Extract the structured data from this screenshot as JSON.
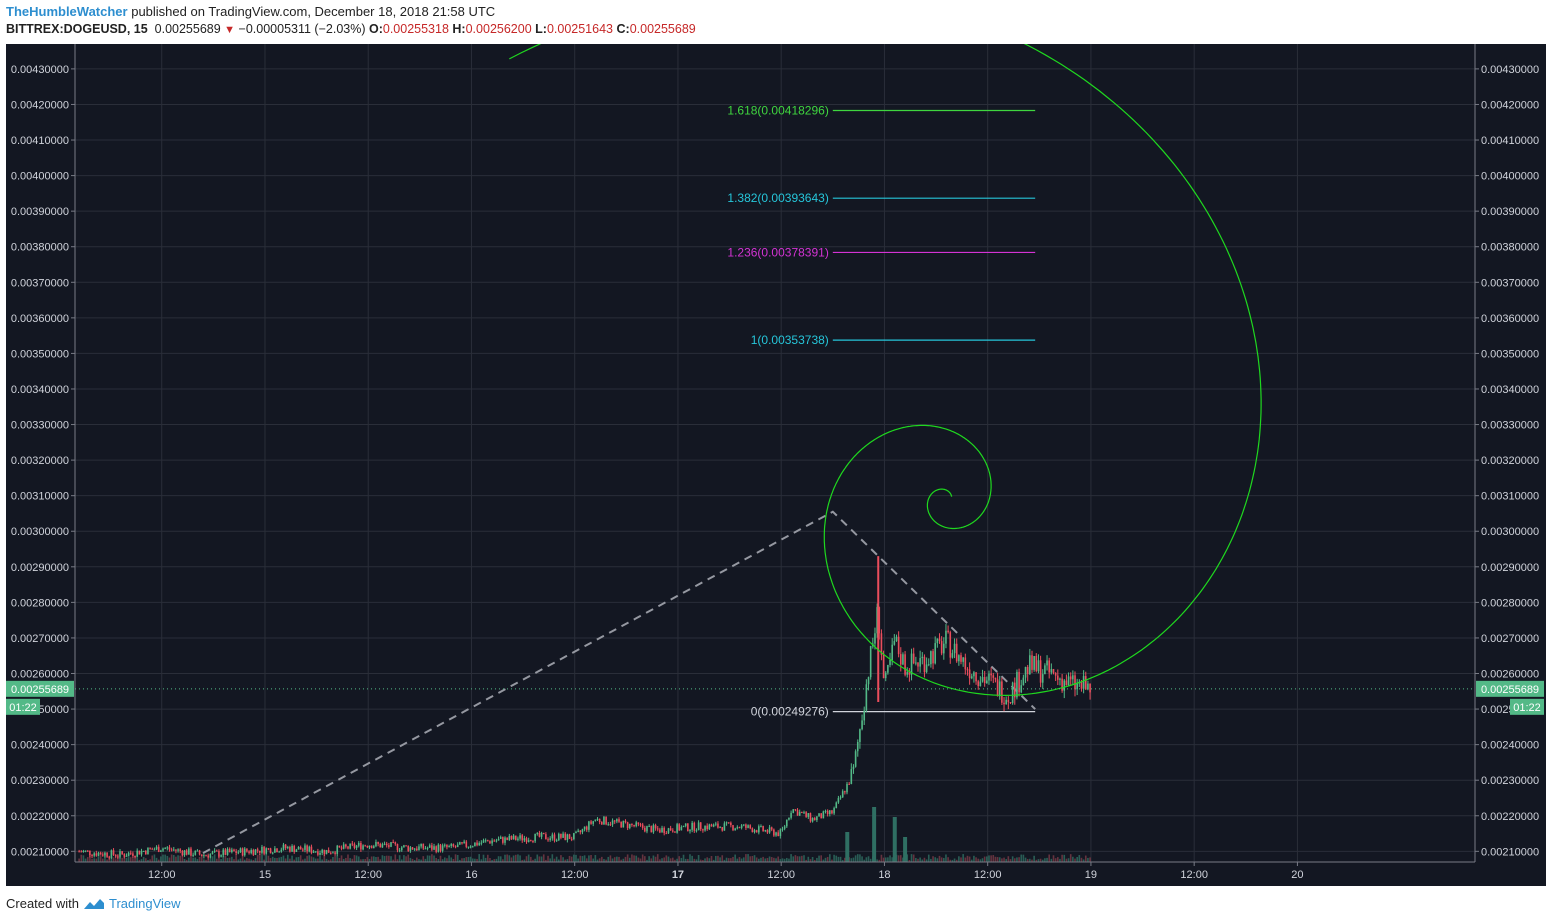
{
  "header": {
    "author": "TheHumbleWatcher",
    "published_text": "published on TradingView.com, December 18, 2018 21:58 UTC",
    "symbol": "BITTREX:DOGEUSD, 15",
    "last": "0.00255689",
    "change": "−0.00005311 (−2.03%)",
    "o_label": "O:",
    "o": "0.00255318",
    "h_label": "H:",
    "h": "0.00256200",
    "l_label": "L:",
    "l": "0.00251643",
    "c_label": "C:",
    "c": "0.00255689"
  },
  "footer": {
    "created_with": "Created with",
    "brand": "TradingView"
  },
  "colors": {
    "background": "#131722",
    "grid": "#2a2e39",
    "up": "#53b987",
    "down": "#eb4d5c",
    "spiral": "#1fd81f",
    "fib_1618": "#3fd63f",
    "fib_1382": "#26c6da",
    "fib_1236": "#d433d4",
    "fib_1": "#26c6da",
    "fib_0": "#d1d4dc",
    "price_line": "#53b987"
  },
  "chart_data": {
    "type": "candlestick",
    "y_ticks": [
      "0.00210000",
      "0.00220000",
      "0.00230000",
      "0.00240000",
      "0.00250000",
      "0.00260000",
      "0.00270000",
      "0.00280000",
      "0.00290000",
      "0.00300000",
      "0.00310000",
      "0.00320000",
      "0.00330000",
      "0.00340000",
      "0.00350000",
      "0.00360000",
      "0.00370000",
      "0.00380000",
      "0.00390000",
      "0.00400000",
      "0.00410000",
      "0.00420000",
      "0.00430000"
    ],
    "y_tick_values": [
      0.0021,
      0.0022,
      0.0023,
      0.0024,
      0.0025,
      0.0026,
      0.0027,
      0.0028,
      0.0029,
      0.003,
      0.0031,
      0.0032,
      0.0033,
      0.0034,
      0.0035,
      0.0036,
      0.0037,
      0.0038,
      0.0039,
      0.004,
      0.0041,
      0.0042,
      0.0043
    ],
    "ylim": [
      0.00207,
      0.00437
    ],
    "x_start_day": 14.08,
    "x_end_day": 20.86,
    "x_ticks": [
      {
        "label": "12:00",
        "day": 14.5,
        "bold": false
      },
      {
        "label": "15",
        "day": 15,
        "bold": false
      },
      {
        "label": "12:00",
        "day": 15.5,
        "bold": false
      },
      {
        "label": "16",
        "day": 16,
        "bold": false
      },
      {
        "label": "12:00",
        "day": 16.5,
        "bold": false
      },
      {
        "label": "17",
        "day": 17,
        "bold": true
      },
      {
        "label": "12:00",
        "day": 17.5,
        "bold": false
      },
      {
        "label": "18",
        "day": 18,
        "bold": false
      },
      {
        "label": "12:00",
        "day": 18.5,
        "bold": false
      },
      {
        "label": "19",
        "day": 19,
        "bold": false
      },
      {
        "label": "12:00",
        "day": 19.5,
        "bold": false
      },
      {
        "label": "20",
        "day": 20,
        "bold": false
      }
    ],
    "last_price": 0.00255689,
    "last_price_label": "0.00255689",
    "countdown": "01:22",
    "fib_levels": [
      {
        "label": "1.618(0.00418296)",
        "value": 0.00418296,
        "color": "#3fd63f"
      },
      {
        "label": "1.382(0.00393643)",
        "value": 0.00393643,
        "color": "#26c6da"
      },
      {
        "label": "1.236(0.00378391)",
        "value": 0.00378391,
        "color": "#d433d4"
      },
      {
        "label": "1(0.00353738)",
        "value": 0.00353738,
        "color": "#26c6da"
      },
      {
        "label": "0(0.00249276)",
        "value": 0.00249276,
        "color": "#d1d4dc"
      }
    ],
    "fib_x_range_day": [
      17.75,
      18.73
    ],
    "pattern_line": [
      {
        "day": 14.7,
        "price": 0.002095
      },
      {
        "day": 17.75,
        "price": 0.003055
      },
      {
        "day": 18.73,
        "price": 0.0025
      }
    ],
    "price_anchors": [
      [
        14.1,
        0.0021
      ],
      [
        14.3,
        0.00209
      ],
      [
        14.5,
        0.00211
      ],
      [
        14.7,
        0.00209
      ],
      [
        14.9,
        0.0021
      ],
      [
        15.1,
        0.00211
      ],
      [
        15.3,
        0.0021
      ],
      [
        15.5,
        0.00212
      ],
      [
        15.7,
        0.00211
      ],
      [
        15.9,
        0.00211
      ],
      [
        16.1,
        0.00213
      ],
      [
        16.3,
        0.00214
      ],
      [
        16.5,
        0.00214
      ],
      [
        16.6,
        0.00219
      ],
      [
        16.7,
        0.00218
      ],
      [
        16.9,
        0.00216
      ],
      [
        17.1,
        0.00217
      ],
      [
        17.3,
        0.00217
      ],
      [
        17.5,
        0.00215
      ],
      [
        17.55,
        0.00222
      ],
      [
        17.65,
        0.00219
      ],
      [
        17.75,
        0.00221
      ],
      [
        17.85,
        0.00232
      ],
      [
        17.92,
        0.0026
      ],
      [
        17.97,
        0.00278
      ],
      [
        18.0,
        0.00255
      ],
      [
        18.05,
        0.00269
      ],
      [
        18.1,
        0.00262
      ],
      [
        18.2,
        0.00264
      ],
      [
        18.3,
        0.00269
      ],
      [
        18.4,
        0.00262
      ],
      [
        18.5,
        0.00258
      ],
      [
        18.6,
        0.00254
      ],
      [
        18.7,
        0.00262
      ],
      [
        18.8,
        0.0026
      ],
      [
        18.9,
        0.00257
      ],
      [
        19.0,
        0.00255689
      ]
    ],
    "spike": {
      "day": 17.97,
      "high": 0.00293
    },
    "volume_spikes": [
      [
        17.95,
        55
      ],
      [
        18.05,
        45
      ],
      [
        17.82,
        30
      ],
      [
        18.1,
        25
      ]
    ]
  }
}
